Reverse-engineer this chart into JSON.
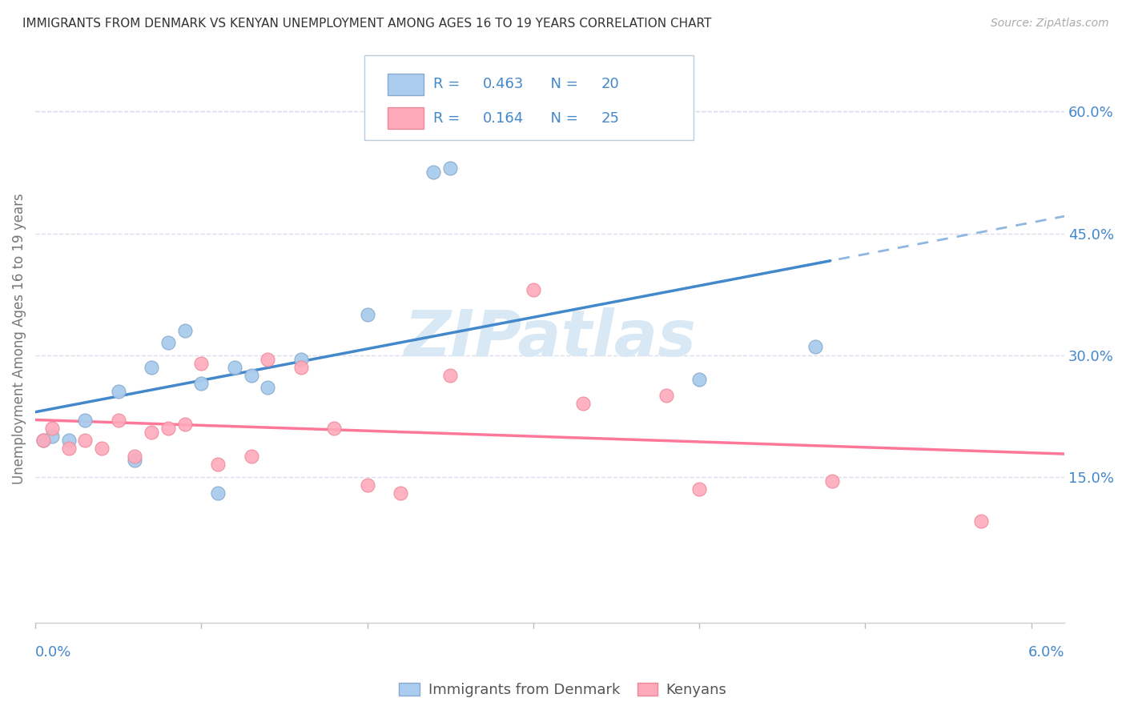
{
  "title": "IMMIGRANTS FROM DENMARK VS KENYAN UNEMPLOYMENT AMONG AGES 16 TO 19 YEARS CORRELATION CHART",
  "source": "Source: ZipAtlas.com",
  "ylabel": "Unemployment Among Ages 16 to 19 years",
  "legend1_label": "Immigrants from Denmark",
  "legend2_label": "Kenyans",
  "R1": 0.463,
  "N1": 20,
  "R2": 0.164,
  "N2": 25,
  "blue_scatter_color": "#AACCEE",
  "blue_edge_color": "#88AACC",
  "pink_scatter_color": "#FFAABB",
  "pink_edge_color": "#EE8899",
  "blue_line_color": "#4488CC",
  "pink_line_color": "#FF7799",
  "legend_text_color": "#4488CC",
  "right_tick_color": "#4488CC",
  "xlabel_color": "#4488CC",
  "ylabel_color": "#777777",
  "watermark_color": "#D8E8F5",
  "grid_color": "#DDDDEE",
  "title_color": "#333333",
  "source_color": "#AAAAAA",
  "figsize": [
    14.06,
    8.92
  ],
  "dpi": 100,
  "xlim": [
    0.0,
    0.062
  ],
  "ylim": [
    -0.03,
    0.67
  ],
  "right_yticks": [
    0.15,
    0.3,
    0.45,
    0.6
  ],
  "blue_scatter_x": [
    0.0005,
    0.001,
    0.002,
    0.003,
    0.005,
    0.006,
    0.007,
    0.008,
    0.009,
    0.01,
    0.011,
    0.012,
    0.013,
    0.014,
    0.016,
    0.02,
    0.024,
    0.025,
    0.04,
    0.047
  ],
  "blue_scatter_y": [
    0.195,
    0.2,
    0.195,
    0.22,
    0.255,
    0.17,
    0.285,
    0.315,
    0.33,
    0.265,
    0.13,
    0.285,
    0.275,
    0.26,
    0.295,
    0.35,
    0.525,
    0.53,
    0.27,
    0.31
  ],
  "pink_scatter_x": [
    0.0005,
    0.001,
    0.002,
    0.003,
    0.004,
    0.005,
    0.006,
    0.007,
    0.008,
    0.009,
    0.01,
    0.011,
    0.013,
    0.014,
    0.016,
    0.018,
    0.02,
    0.022,
    0.025,
    0.03,
    0.033,
    0.038,
    0.04,
    0.048,
    0.057
  ],
  "pink_scatter_y": [
    0.195,
    0.21,
    0.185,
    0.195,
    0.185,
    0.22,
    0.175,
    0.205,
    0.21,
    0.215,
    0.29,
    0.165,
    0.175,
    0.295,
    0.285,
    0.21,
    0.14,
    0.13,
    0.275,
    0.38,
    0.24,
    0.25,
    0.135,
    0.145,
    0.095
  ]
}
